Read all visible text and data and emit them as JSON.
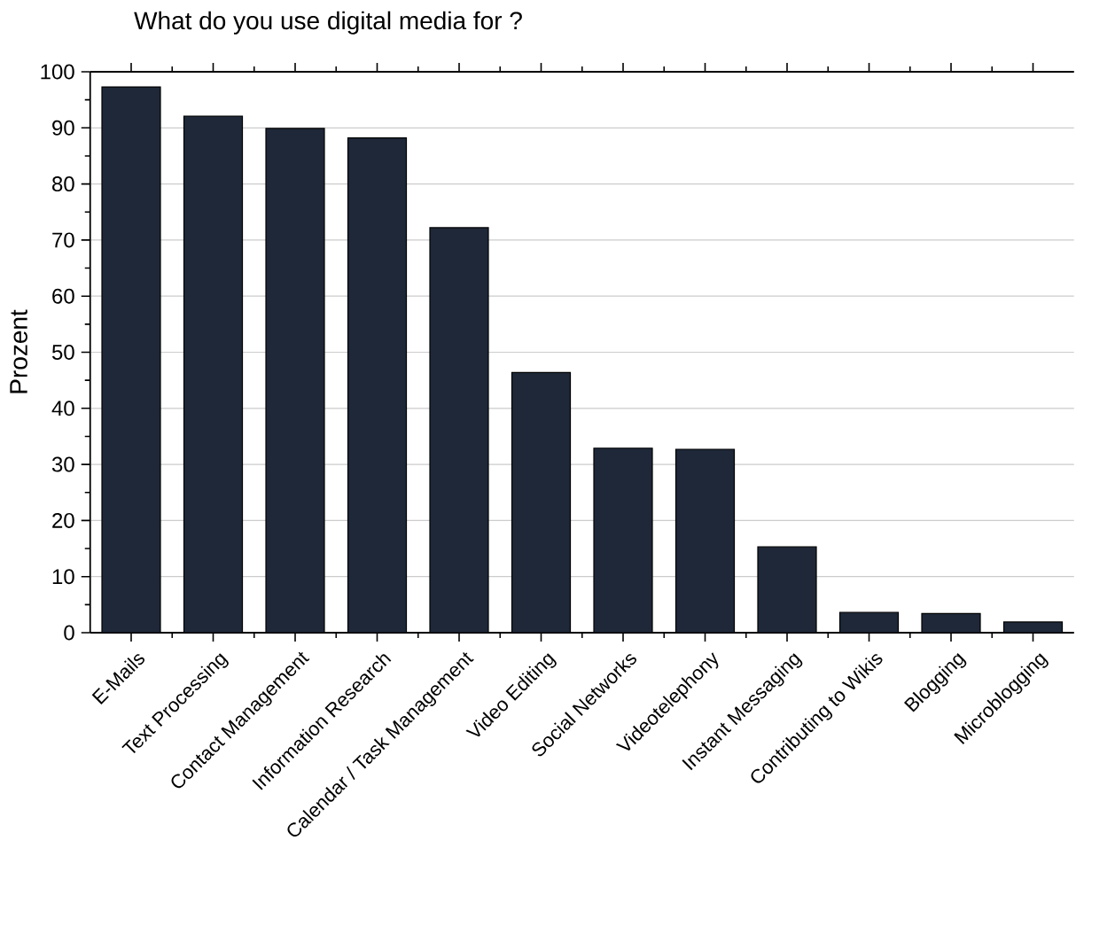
{
  "chart_data": {
    "type": "bar",
    "title": "What do you use digital media for ?",
    "ylabel": "Prozent",
    "categories": [
      "E-Mails",
      "Text Processing",
      "Contact Management",
      "Information Research",
      "Calendar / Task Management",
      "Video Editing",
      "Social Networks",
      "Videotelephony",
      "Instant Messaging",
      "Contributing to Wikis",
      "Blogging",
      "Microblogging"
    ],
    "values": [
      97.3,
      92.1,
      89.9,
      88.2,
      72.2,
      46.4,
      32.9,
      32.7,
      15.3,
      3.6,
      3.4,
      1.9
    ],
    "color": "#1e2838",
    "ylim": [
      0,
      100
    ],
    "yticks": [
      0,
      10,
      20,
      30,
      40,
      50,
      60,
      70,
      80,
      90,
      100
    ],
    "grid": "y"
  }
}
